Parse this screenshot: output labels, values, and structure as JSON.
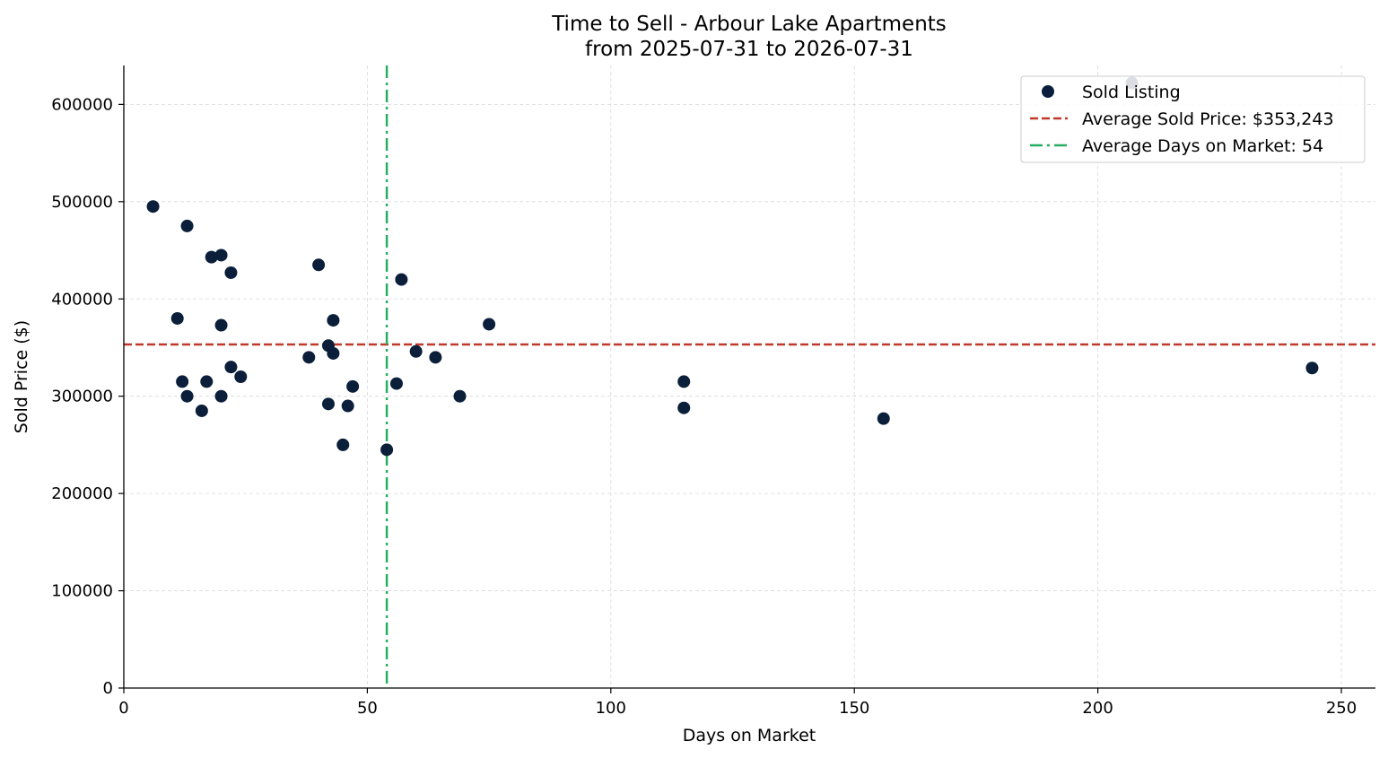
{
  "chart_data": {
    "type": "scatter",
    "title": "Time to Sell - Arbour Lake Apartments",
    "subtitle": "from 2025-07-31 to 2026-07-31",
    "xlabel": "Days on Market",
    "ylabel": "Sold Price ($)",
    "xlim": [
      0,
      257
    ],
    "ylim": [
      0,
      640000
    ],
    "x_ticks": [
      0,
      50,
      100,
      150,
      200,
      250
    ],
    "y_ticks": [
      0,
      100000,
      200000,
      300000,
      400000,
      500000,
      600000
    ],
    "grid": true,
    "legend_position": "top-right",
    "series": [
      {
        "name": "Sold Listing",
        "color": "#0b1f3a",
        "points": [
          {
            "x": 6,
            "y": 495000
          },
          {
            "x": 11,
            "y": 380000
          },
          {
            "x": 12,
            "y": 315000
          },
          {
            "x": 13,
            "y": 475000
          },
          {
            "x": 13,
            "y": 300000
          },
          {
            "x": 16,
            "y": 285000
          },
          {
            "x": 17,
            "y": 315000
          },
          {
            "x": 18,
            "y": 443000
          },
          {
            "x": 20,
            "y": 445000
          },
          {
            "x": 20,
            "y": 373000
          },
          {
            "x": 20,
            "y": 300000
          },
          {
            "x": 22,
            "y": 427000
          },
          {
            "x": 22,
            "y": 330000
          },
          {
            "x": 24,
            "y": 320000
          },
          {
            "x": 38,
            "y": 340000
          },
          {
            "x": 40,
            "y": 435000
          },
          {
            "x": 42,
            "y": 352000
          },
          {
            "x": 42,
            "y": 292000
          },
          {
            "x": 43,
            "y": 378000
          },
          {
            "x": 43,
            "y": 344000
          },
          {
            "x": 45,
            "y": 250000
          },
          {
            "x": 46,
            "y": 290000
          },
          {
            "x": 47,
            "y": 310000
          },
          {
            "x": 54,
            "y": 245000
          },
          {
            "x": 56,
            "y": 313000
          },
          {
            "x": 57,
            "y": 420000
          },
          {
            "x": 60,
            "y": 346000
          },
          {
            "x": 64,
            "y": 340000
          },
          {
            "x": 69,
            "y": 300000
          },
          {
            "x": 75,
            "y": 374000
          },
          {
            "x": 115,
            "y": 315000
          },
          {
            "x": 115,
            "y": 288000
          },
          {
            "x": 156,
            "y": 277000
          },
          {
            "x": 207,
            "y": 622000
          },
          {
            "x": 244,
            "y": 329000
          }
        ]
      }
    ],
    "reference_lines": [
      {
        "name": "Average Sold Price: $353,243",
        "orientation": "horizontal",
        "value": 353243,
        "color": "#c0392b",
        "style": "dashed"
      },
      {
        "name": "Average Days on Market: 54",
        "orientation": "vertical",
        "value": 54,
        "color": "#27ae60",
        "style": "dashdot"
      }
    ]
  }
}
